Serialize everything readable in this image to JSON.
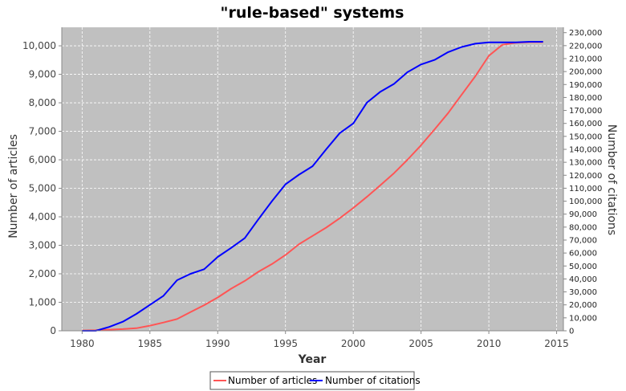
{
  "chart_data": {
    "type": "line",
    "title": "\"rule-based\" systems",
    "xlabel": "Year",
    "ylabel_left": "Number of articles",
    "ylabel_right": "Number of citations",
    "xlim": [
      1978.5,
      2015.5
    ],
    "ylim_left": [
      0,
      10650
    ],
    "ylim_right": [
      0,
      234150
    ],
    "x_ticks": [
      1980,
      1985,
      1990,
      1995,
      2000,
      2005,
      2010,
      2015
    ],
    "y_ticks_left": [
      0,
      1000,
      2000,
      3000,
      4000,
      5000,
      6000,
      7000,
      8000,
      9000,
      10000
    ],
    "y_ticks_right": [
      0,
      10000,
      20000,
      30000,
      40000,
      50000,
      60000,
      70000,
      80000,
      90000,
      100000,
      110000,
      120000,
      130000,
      140000,
      150000,
      160000,
      170000,
      180000,
      190000,
      200000,
      210000,
      220000,
      230000
    ],
    "x": [
      1980,
      1981,
      1982,
      1983,
      1984,
      1985,
      1986,
      1987,
      1988,
      1989,
      1990,
      1991,
      1992,
      1993,
      1994,
      1995,
      1996,
      1997,
      1998,
      1999,
      2000,
      2001,
      2002,
      2003,
      2004,
      2005,
      2006,
      2007,
      2008,
      2009,
      2010,
      2011,
      2012,
      2013,
      2014
    ],
    "series": [
      {
        "name": "Number of articles",
        "axis": "left",
        "color": "#ff5555",
        "values": [
          10,
          20,
          40,
          60,
          90,
          180,
          290,
          410,
          660,
          900,
          1170,
          1480,
          1750,
          2070,
          2340,
          2660,
          3040,
          3330,
          3620,
          3950,
          4310,
          4700,
          5110,
          5530,
          6000,
          6510,
          7070,
          7640,
          8290,
          8930,
          9650,
          10040,
          10110,
          10130,
          10130
        ]
      },
      {
        "name": "Number of citations",
        "axis": "right",
        "color": "#0000ff",
        "values": [
          0,
          0,
          3000,
          7000,
          13000,
          20000,
          27000,
          39000,
          44000,
          47500,
          57000,
          64000,
          71500,
          86000,
          100000,
          113000,
          120500,
          127000,
          140000,
          152500,
          160000,
          176000,
          184500,
          190500,
          199500,
          205500,
          209000,
          215000,
          219000,
          221500,
          222500,
          222500,
          222500,
          223000,
          223000
        ]
      }
    ],
    "grid": true,
    "legend": "bottom-center",
    "plot_background": "#c0c0c0",
    "grid_color": "#ffffff"
  }
}
